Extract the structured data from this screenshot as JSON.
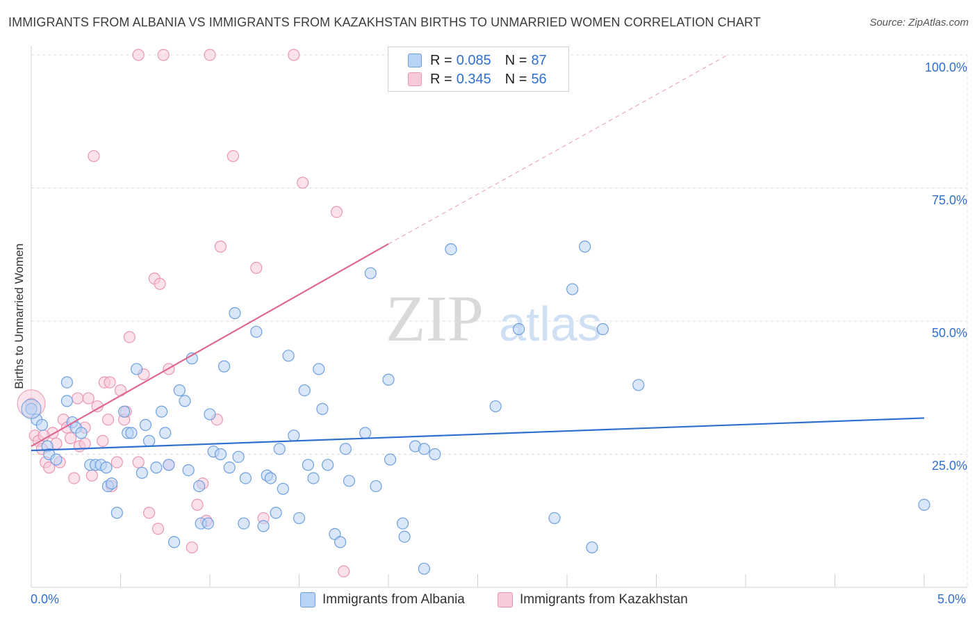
{
  "title": "IMMIGRANTS FROM ALBANIA VS IMMIGRANTS FROM KAZAKHSTAN BIRTHS TO UNMARRIED WOMEN CORRELATION CHART",
  "source": "Source: ZipAtlas.com",
  "watermark": {
    "zip": "ZIP",
    "atlas": "atlas"
  },
  "legend": {
    "r_label": "R =",
    "n_label": "N =",
    "albania": {
      "r": "0.085",
      "n": "87"
    },
    "kazakhstan": {
      "r": "0.345",
      "n": "56"
    }
  },
  "bottom_legend": {
    "albania": "Immigrants from Albania",
    "kazakhstan": "Immigrants from Kazakhstan"
  },
  "colors": {
    "albania_fill": "#b9d3f4",
    "albania_stroke": "#6d9fdf",
    "albania_line": "#2f6fcf",
    "kazakhstan_fill": "#f8c9d8",
    "kazakhstan_stroke": "#ea96b3",
    "kazakhstan_line": "#e0688f",
    "grid": "#dcdcdc",
    "tick_text": "#2f6fcf"
  },
  "chart_data": {
    "type": "scatter",
    "title": "IMMIGRANTS FROM ALBANIA VS IMMIGRANTS FROM KAZAKHSTAN BIRTHS TO UNMARRIED WOMEN CORRELATION CHART",
    "xlabel": "",
    "ylabel": "Births to Unmarried Women",
    "xlim": [
      0,
      5
    ],
    "ylim": [
      0,
      105
    ],
    "x_tick_labels": [
      "0.0%",
      "5.0%"
    ],
    "y_ticks": [
      25,
      50,
      75,
      100
    ],
    "y_tick_labels": [
      "25.0%",
      "50.0%",
      "75.0%",
      "100.0%"
    ],
    "grid": true,
    "legend_position": "top-center",
    "series": [
      {
        "name": "Immigrants from Albania",
        "points": [
          [
            0.0,
            33.5
          ],
          [
            0.03,
            31.5
          ],
          [
            0.06,
            30.5
          ],
          [
            0.09,
            26.5
          ],
          [
            0.1,
            25.0
          ],
          [
            0.14,
            24.0
          ],
          [
            0.2,
            38.5
          ],
          [
            0.2,
            35.0
          ],
          [
            0.23,
            31.0
          ],
          [
            0.25,
            30.0
          ],
          [
            0.28,
            29.0
          ],
          [
            0.33,
            23.0
          ],
          [
            0.36,
            23.0
          ],
          [
            0.39,
            23.0
          ],
          [
            0.42,
            22.5
          ],
          [
            0.43,
            19.0
          ],
          [
            0.45,
            19.5
          ],
          [
            0.48,
            14.0
          ],
          [
            0.52,
            33.0
          ],
          [
            0.54,
            29.0
          ],
          [
            0.56,
            29.0
          ],
          [
            0.59,
            41.0
          ],
          [
            0.62,
            21.5
          ],
          [
            0.64,
            30.5
          ],
          [
            0.66,
            27.5
          ],
          [
            0.7,
            22.5
          ],
          [
            0.73,
            33.0
          ],
          [
            0.75,
            29.0
          ],
          [
            0.77,
            23.0
          ],
          [
            0.8,
            8.5
          ],
          [
            0.83,
            37.0
          ],
          [
            0.86,
            35.0
          ],
          [
            0.88,
            22.0
          ],
          [
            0.9,
            43.0
          ],
          [
            0.94,
            19.0
          ],
          [
            0.95,
            12.0
          ],
          [
            0.99,
            12.0
          ],
          [
            1.0,
            32.5
          ],
          [
            1.02,
            25.5
          ],
          [
            1.06,
            25.0
          ],
          [
            1.08,
            41.5
          ],
          [
            1.11,
            22.5
          ],
          [
            1.14,
            51.5
          ],
          [
            1.16,
            24.5
          ],
          [
            1.19,
            12.0
          ],
          [
            1.2,
            20.5
          ],
          [
            1.26,
            48.0
          ],
          [
            1.3,
            11.5
          ],
          [
            1.32,
            21.0
          ],
          [
            1.34,
            20.5
          ],
          [
            1.37,
            14.0
          ],
          [
            1.39,
            26.0
          ],
          [
            1.41,
            18.5
          ],
          [
            1.44,
            43.5
          ],
          [
            1.47,
            28.5
          ],
          [
            1.5,
            13.0
          ],
          [
            1.53,
            37.0
          ],
          [
            1.55,
            23.0
          ],
          [
            1.58,
            20.5
          ],
          [
            1.61,
            41.0
          ],
          [
            1.63,
            33.5
          ],
          [
            1.66,
            23.0
          ],
          [
            1.7,
            10.0
          ],
          [
            1.73,
            8.5
          ],
          [
            1.76,
            26.0
          ],
          [
            1.78,
            20.0
          ],
          [
            1.87,
            29.0
          ],
          [
            1.9,
            59.0
          ],
          [
            1.93,
            19.0
          ],
          [
            2.0,
            39.0
          ],
          [
            2.01,
            24.0
          ],
          [
            2.08,
            12.0
          ],
          [
            2.09,
            9.5
          ],
          [
            2.15,
            26.5
          ],
          [
            2.2,
            26.0
          ],
          [
            2.2,
            3.5
          ],
          [
            2.26,
            25.0
          ],
          [
            2.35,
            63.5
          ],
          [
            2.6,
            34.0
          ],
          [
            2.73,
            48.5
          ],
          [
            2.93,
            13.0
          ],
          [
            3.03,
            56.0
          ],
          [
            3.1,
            64.0
          ],
          [
            3.14,
            7.5
          ],
          [
            3.2,
            48.5
          ],
          [
            5.0,
            15.5
          ],
          [
            3.4,
            38.0
          ]
        ],
        "trend": {
          "x": [
            0,
            5
          ],
          "y": [
            25.7,
            31.8
          ]
        }
      },
      {
        "name": "Immigrants from Kazakhstan",
        "points": [
          [
            0.0,
            34.5
          ],
          [
            0.02,
            28.5
          ],
          [
            0.04,
            27.5
          ],
          [
            0.06,
            26.0
          ],
          [
            0.08,
            23.5
          ],
          [
            0.1,
            22.5
          ],
          [
            0.12,
            29.0
          ],
          [
            0.14,
            27.0
          ],
          [
            0.16,
            23.5
          ],
          [
            0.18,
            31.5
          ],
          [
            0.2,
            30.0
          ],
          [
            0.22,
            28.0
          ],
          [
            0.24,
            20.5
          ],
          [
            0.26,
            35.5
          ],
          [
            0.27,
            26.5
          ],
          [
            0.3,
            30.0
          ],
          [
            0.3,
            27.0
          ],
          [
            0.32,
            35.5
          ],
          [
            0.34,
            21.0
          ],
          [
            0.35,
            81.0
          ],
          [
            0.37,
            34.0
          ],
          [
            0.4,
            27.5
          ],
          [
            0.41,
            38.5
          ],
          [
            0.43,
            31.5
          ],
          [
            0.44,
            38.5
          ],
          [
            0.45,
            19.0
          ],
          [
            0.48,
            23.5
          ],
          [
            0.5,
            37.0
          ],
          [
            0.52,
            31.5
          ],
          [
            0.53,
            33.0
          ],
          [
            0.55,
            47.0
          ],
          [
            0.6,
            100.0
          ],
          [
            0.6,
            23.5
          ],
          [
            0.63,
            40.0
          ],
          [
            0.66,
            14.0
          ],
          [
            0.69,
            58.0
          ],
          [
            0.71,
            11.0
          ],
          [
            0.72,
            57.0
          ],
          [
            0.74,
            100.0
          ],
          [
            0.77,
            41.0
          ],
          [
            0.77,
            23.0
          ],
          [
            0.9,
            7.5
          ],
          [
            0.93,
            15.5
          ],
          [
            0.96,
            19.5
          ],
          [
            0.98,
            12.5
          ],
          [
            1.0,
            100.0
          ],
          [
            1.04,
            31.5
          ],
          [
            1.06,
            64.0
          ],
          [
            1.13,
            81.0
          ],
          [
            1.26,
            60.0
          ],
          [
            1.3,
            13.0
          ],
          [
            1.47,
            100.0
          ],
          [
            1.52,
            76.0
          ],
          [
            1.71,
            70.5
          ],
          [
            1.75,
            3.0
          ],
          [
            0.07,
            28.5
          ]
        ],
        "trend": {
          "x": [
            0,
            2.0
          ],
          "y": [
            26.5,
            64.5
          ]
        },
        "trend_extended": {
          "x": [
            2.0,
            3.9
          ],
          "y": [
            64.5,
            100.0
          ]
        }
      }
    ]
  }
}
